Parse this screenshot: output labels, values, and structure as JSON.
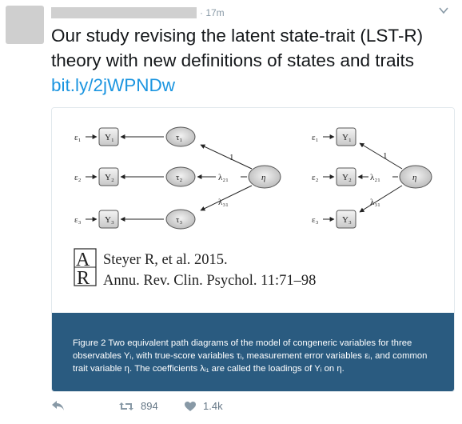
{
  "tweet": {
    "time": "· 17m",
    "text": "Our study revising the latent state-trait (LST-R) theory with new definitions of states and traits ",
    "link": "bit.ly/2jWPNDw"
  },
  "card": {
    "reference_line1": "Steyer R, et al. 2015.",
    "reference_line2": "Annu. Rev. Clin. Psychol. 11:71–98",
    "logo_text": "AR",
    "caption": "Figure 2 Two equivalent path diagrams of the model of congeneric variables for three observables Yᵢ, with true-score variables τᵢ, measurement error variables εᵢ, and common trait variable η. The coefficients λᵢ₁ are called the loadings of Yᵢ on η.",
    "diagram_left": {
      "errors": [
        "ε₁",
        "ε₂",
        "ε₃"
      ],
      "observables": [
        "Y₁",
        "Y₂",
        "Y₃"
      ],
      "true_scores": [
        "τ₁",
        "τ₂",
        "τ₃"
      ],
      "trait": "η",
      "coefficients": [
        "1",
        "λ₂₁",
        "λ₃₁"
      ]
    },
    "diagram_right": {
      "errors": [
        "ε₁",
        "ε₂",
        "ε₃"
      ],
      "observables": [
        "Y₁",
        "Y₂",
        "Y₃"
      ],
      "trait": "η",
      "coefficients": [
        "1",
        "λ₂₁",
        "λ₃₁"
      ]
    }
  },
  "actions": {
    "retweets": "894",
    "likes": "1.4k"
  },
  "colors": {
    "link": "#1b95e0",
    "caption_bg": "#2a5b80",
    "muted": "#657786"
  }
}
